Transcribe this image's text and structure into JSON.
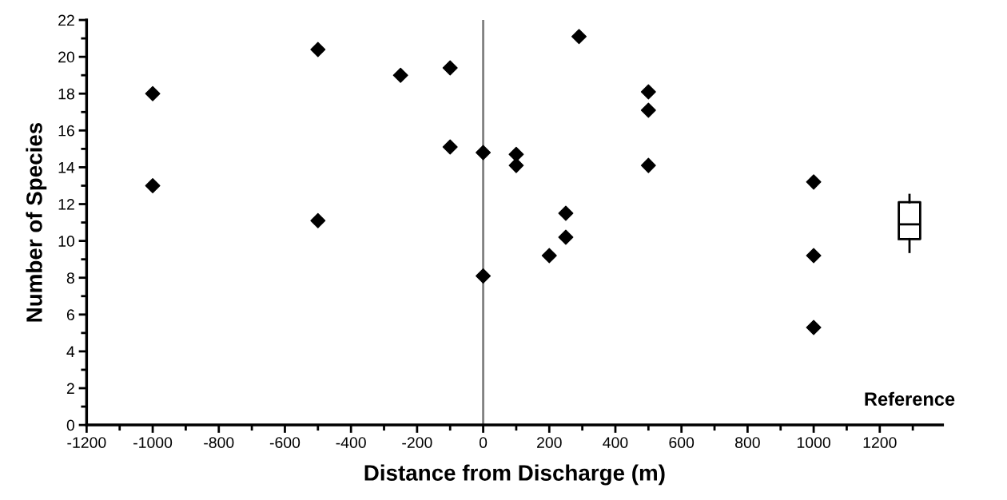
{
  "chart_data": {
    "type": "scatter",
    "xlabel": "Distance from Discharge (m)",
    "ylabel": "Number of Species",
    "series": [
      {
        "color": "#000000",
        "marker": "diamond",
        "x": [
          -1000,
          -1000,
          -500,
          -500,
          -250,
          -100,
          -100,
          0,
          0,
          100,
          100,
          200,
          250,
          250,
          290,
          500,
          500,
          500,
          1000,
          1000,
          1000
        ],
        "values": [
          18,
          13,
          20.4,
          11.1,
          19,
          19.4,
          15.1,
          14.8,
          8.1,
          14.7,
          14.1,
          9.2,
          11.5,
          10.2,
          21.1,
          18.1,
          17.1,
          14.1,
          13.2,
          9.2,
          5.3
        ]
      },
      {
        "type": "box",
        "name": "Reference",
        "color": "#000000",
        "x": [
          1290
        ],
        "boxes": [
          {
            "low": 9.4,
            "q1": 10.1,
            "median": 10.9,
            "q3": 12.1,
            "high": 12.5
          }
        ]
      }
    ],
    "xlim": [
      -1200,
      1390
    ],
    "xticks": [
      -1200,
      -1000,
      -800,
      -600,
      -400,
      -200,
      0,
      200,
      400,
      600,
      800,
      1000,
      1200
    ],
    "ylim": [
      0,
      22
    ],
    "yticks": [
      0,
      2,
      4,
      6,
      8,
      10,
      12,
      14,
      16,
      18,
      20,
      22
    ],
    "ref_lines": [
      {
        "axis": "x",
        "value": 0,
        "color": "#808080",
        "line_style": "solid"
      }
    ],
    "grid": false,
    "legend": false
  }
}
